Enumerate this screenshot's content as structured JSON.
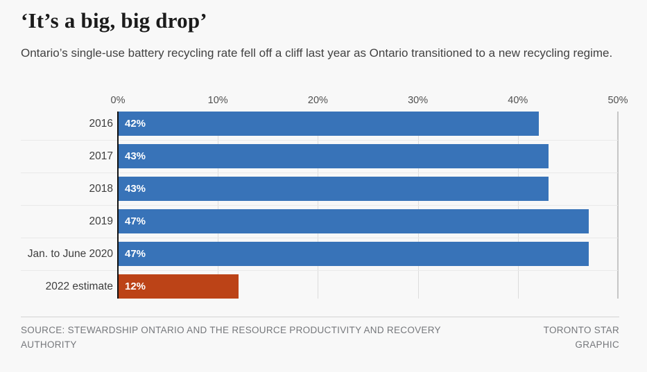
{
  "page": {
    "background": "#f8f8f8"
  },
  "header": {
    "title": "‘It’s a big, big drop’",
    "subtitle": "Ontario’s single-use battery recycling rate fell off a cliff last year as Ontario transitioned to a new recycling regime."
  },
  "chart_data": {
    "type": "bar",
    "orientation": "horizontal",
    "title": "‘It’s a big, big drop’",
    "categories": [
      "2016",
      "2017",
      "2018",
      "2019",
      "Jan. to June 2020",
      "2022 estimate"
    ],
    "values": [
      42,
      43,
      43,
      47,
      47,
      12
    ],
    "value_labels": [
      "42%",
      "43%",
      "43%",
      "47%",
      "47%",
      "12%"
    ],
    "xlim": [
      0,
      50
    ],
    "x_ticks": [
      0,
      10,
      20,
      30,
      40,
      50
    ],
    "x_tick_labels": [
      "0%",
      "10%",
      "20%",
      "30%",
      "40%",
      "50%"
    ],
    "grid": true,
    "legend": "none",
    "primary_color": "#3873b8",
    "highlight_color": "#bc4317",
    "bar_colors": [
      "#3873b8",
      "#3873b8",
      "#3873b8",
      "#3873b8",
      "#3873b8",
      "#bc4317"
    ]
  },
  "footer": {
    "source": "SOURCE: STEWARDSHIP ONTARIO AND THE RESOURCE PRODUCTIVITY AND RECOVERY AUTHORITY",
    "credit": "TORONTO STAR GRAPHIC"
  }
}
